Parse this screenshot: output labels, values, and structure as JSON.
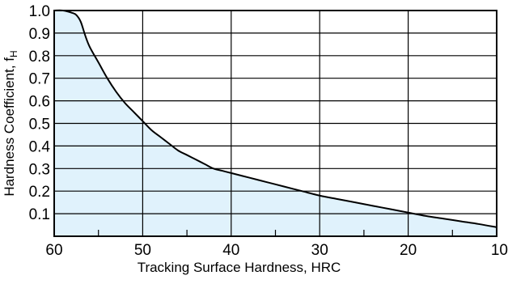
{
  "chart_data": {
    "type": "area",
    "title": "",
    "xlabel": "Tracking Surface Hardness, HRC",
    "ylabel_main": "Hardness Coefficient, f",
    "ylabel_sub": "H",
    "x_reversed": true,
    "xlim": [
      60,
      10
    ],
    "ylim": [
      0,
      1.0
    ],
    "grid": true,
    "x_ticks": [
      "60",
      "50",
      "40",
      "30",
      "20",
      "10"
    ],
    "y_ticks": [
      "0.1",
      "0.2",
      "0.3",
      "0.4",
      "0.5",
      "0.6",
      "0.7",
      "0.8",
      "0.9",
      "1.0"
    ],
    "series": [
      {
        "x": [
          60,
          59,
          58,
          57.5,
          57,
          56.5,
          56,
          55,
          54,
          53,
          52,
          51,
          50,
          49,
          48,
          47,
          46,
          45,
          44,
          43,
          42,
          41,
          40,
          38,
          36,
          34,
          32,
          30,
          28,
          26,
          24,
          22,
          20,
          18,
          16,
          14,
          12,
          10
        ],
        "y": [
          1.0,
          1.0,
          0.99,
          0.98,
          0.95,
          0.89,
          0.84,
          0.77,
          0.7,
          0.64,
          0.59,
          0.55,
          0.51,
          0.47,
          0.44,
          0.41,
          0.38,
          0.36,
          0.34,
          0.32,
          0.3,
          0.29,
          0.28,
          0.26,
          0.24,
          0.22,
          0.2,
          0.18,
          0.165,
          0.15,
          0.135,
          0.12,
          0.105,
          0.09,
          0.078,
          0.066,
          0.054,
          0.04
        ]
      }
    ],
    "colors": {
      "fill": "#e0f2fc",
      "line": "#000000",
      "grid": "#000000"
    }
  }
}
